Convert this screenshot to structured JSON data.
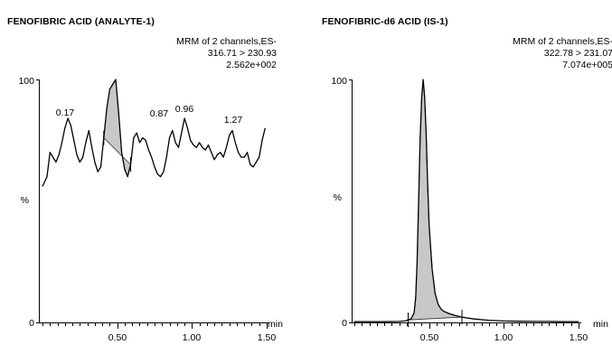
{
  "chart_data": [
    {
      "type": "line",
      "title": "FENOFIBRIC ACID (ANALYTE-1)",
      "info": [
        "MRM of 2 channels,ES-",
        "316.71 > 230.93",
        "2.562e+002"
      ],
      "ylabel": "%",
      "xlabel": "min",
      "ylim": [
        0,
        100
      ],
      "xlim": [
        0.0,
        1.5
      ],
      "y_tick_labels": [
        "0",
        "100"
      ],
      "x_tick_labels": [
        "0.50",
        "1.00",
        "1.50"
      ],
      "x_ticks": [
        0.5,
        1.0,
        1.5
      ],
      "x": [
        0.0,
        0.03,
        0.05,
        0.07,
        0.09,
        0.11,
        0.13,
        0.15,
        0.17,
        0.19,
        0.21,
        0.23,
        0.25,
        0.27,
        0.29,
        0.31,
        0.33,
        0.35,
        0.37,
        0.39,
        0.41,
        0.43,
        0.45,
        0.47,
        0.49,
        0.51,
        0.53,
        0.55,
        0.57,
        0.59,
        0.61,
        0.63,
        0.65,
        0.67,
        0.69,
        0.71,
        0.73,
        0.75,
        0.77,
        0.79,
        0.81,
        0.83,
        0.85,
        0.87,
        0.89,
        0.91,
        0.93,
        0.95,
        0.97,
        0.99,
        1.01,
        1.03,
        1.05,
        1.07,
        1.09,
        1.11,
        1.13,
        1.15,
        1.17,
        1.19,
        1.21,
        1.23,
        1.25,
        1.27,
        1.29,
        1.31,
        1.33,
        1.35,
        1.37,
        1.39,
        1.41,
        1.43,
        1.45,
        1.47,
        1.49
      ],
      "values": [
        56,
        60,
        70,
        68,
        66,
        69,
        74,
        80,
        84,
        81,
        75,
        69,
        66,
        68,
        74,
        79,
        72,
        66,
        62,
        64,
        76,
        88,
        96,
        98,
        100,
        86,
        70,
        63,
        60,
        65,
        76,
        78,
        74,
        76,
        75,
        71,
        68,
        64,
        61,
        60,
        62,
        68,
        76,
        79,
        74,
        72,
        78,
        84,
        80,
        75,
        73,
        72,
        74,
        72,
        71,
        73,
        70,
        67,
        69,
        70,
        68,
        72,
        77,
        79,
        74,
        70,
        68,
        68,
        70,
        65,
        64,
        66,
        68,
        75,
        80
      ],
      "peak_labels": [
        {
          "x": 0.17,
          "y": 84,
          "text": "0.17"
        },
        {
          "x": 0.87,
          "y": 79,
          "text": "0.87"
        },
        {
          "x": 0.96,
          "y": 84,
          "text": "0.96"
        },
        {
          "x": 1.27,
          "y": 79,
          "text": "1.27"
        }
      ],
      "integrated_peak": {
        "x_start": 0.41,
        "x_end": 0.59,
        "fill_color": "#c8c8c8"
      }
    },
    {
      "type": "line",
      "title": "FENOFIBRIC-d6 ACID (IS-1)",
      "info": [
        "MRM of 2 channels,ES-",
        "322.78 > 231.07",
        "7.074e+005"
      ],
      "ylabel": "%",
      "xlabel": "min",
      "ylim": [
        0,
        100
      ],
      "xlim": [
        0.0,
        1.5
      ],
      "y_tick_labels": [
        "0",
        "100"
      ],
      "x_tick_labels": [
        "0.50",
        "1.00",
        "1.50"
      ],
      "x_ticks": [
        0.5,
        1.0,
        1.5
      ],
      "x": [
        0.0,
        0.1,
        0.2,
        0.3,
        0.34,
        0.38,
        0.4,
        0.41,
        0.42,
        0.43,
        0.44,
        0.45,
        0.46,
        0.47,
        0.48,
        0.49,
        0.5,
        0.52,
        0.54,
        0.56,
        0.58,
        0.6,
        0.64,
        0.68,
        0.72,
        0.76,
        0.8,
        0.9,
        1.0,
        1.1,
        1.2,
        1.3,
        1.4,
        1.5
      ],
      "values": [
        0.3,
        0.3,
        0.3,
        0.4,
        0.6,
        1.5,
        4,
        10,
        25,
        50,
        75,
        92,
        100,
        93,
        78,
        58,
        40,
        22,
        12,
        7.5,
        5.5,
        4.5,
        3.5,
        2.8,
        2.2,
        1.8,
        1.4,
        0.9,
        0.6,
        0.5,
        0.4,
        0.4,
        0.3,
        0.3
      ],
      "integrated_peak": {
        "x_start": 0.36,
        "x_end": 0.72,
        "fill_color": "#c8c8c8"
      }
    }
  ]
}
